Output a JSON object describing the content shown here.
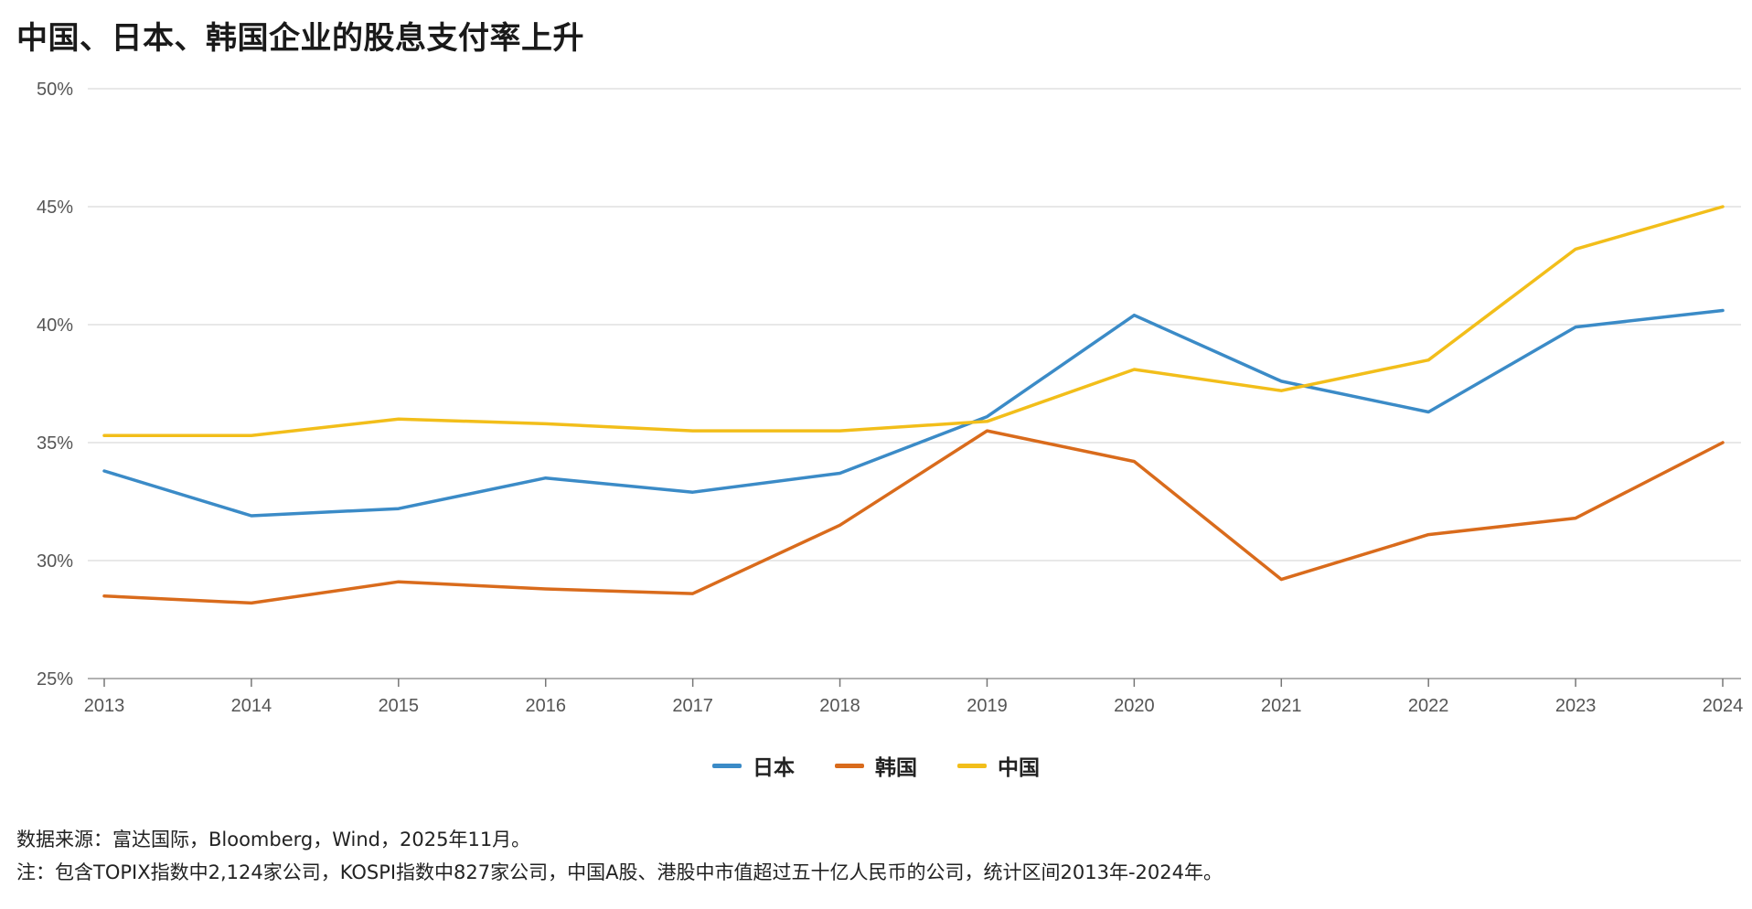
{
  "title": "中国、日本、韩国企业的股息支付率上升",
  "chart_data": {
    "type": "line",
    "title": "中国、日本、韩国企业的股息支付率上升",
    "xlabel": "",
    "ylabel": "",
    "x": [
      "2013",
      "2014",
      "2015",
      "2016",
      "2017",
      "2018",
      "2019",
      "2020",
      "2021",
      "2022",
      "2023",
      "2024"
    ],
    "ylim": [
      25,
      50
    ],
    "yticks": [
      "25%",
      "30%",
      "35%",
      "40%",
      "45%",
      "50%"
    ],
    "grid": "horizontal",
    "legend_position": "bottom-center",
    "series": [
      {
        "name": "日本",
        "color": "#3b8bc7",
        "values": [
          33.8,
          31.9,
          32.2,
          33.5,
          32.9,
          33.7,
          36.1,
          40.4,
          37.6,
          36.3,
          39.9,
          40.6
        ]
      },
      {
        "name": "韩国",
        "color": "#d96b1c",
        "values": [
          28.5,
          28.2,
          29.1,
          28.8,
          28.6,
          31.5,
          35.5,
          34.2,
          29.2,
          31.1,
          31.8,
          35.0
        ]
      },
      {
        "name": "中国",
        "color": "#f2be1a",
        "values": [
          35.3,
          35.3,
          36.0,
          35.8,
          35.5,
          35.5,
          35.9,
          38.1,
          37.2,
          38.5,
          43.2,
          45.0
        ]
      }
    ]
  },
  "footnotes": {
    "source": "数据来源：富达国际，Bloomberg，Wind，2025年11月。",
    "note": "注：包含TOPIX指数中2,124家公司，KOSPI指数中827家公司，中国A股、港股中市值超过五十亿人民币的公司，统计区间2013年-2024年。"
  }
}
